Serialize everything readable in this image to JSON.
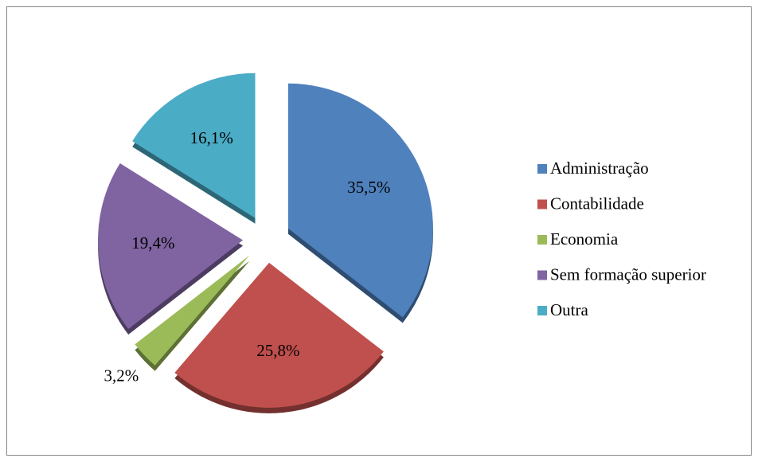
{
  "chart_data": {
    "type": "pie",
    "categories": [
      "Administração",
      "Contabilidade",
      "Economia",
      "Sem formação superior",
      "Outra"
    ],
    "values": [
      35.5,
      25.8,
      3.2,
      19.4,
      16.1
    ],
    "value_labels": [
      "35,5%",
      "25,8%",
      "3,2%",
      "19,4%",
      "16,1%"
    ],
    "colors": [
      "#4f81bd",
      "#c0504d",
      "#9bbb59",
      "#8064a2",
      "#4bacc6"
    ],
    "legend": "right"
  }
}
